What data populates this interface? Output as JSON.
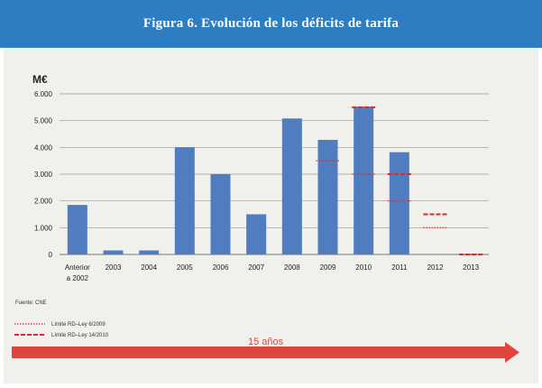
{
  "figure": {
    "title": "Figura 6. Evolución de los déficits de tarifa",
    "source": "Fuente: CNE",
    "arrow_label": "15 años"
  },
  "colors": {
    "banner": "#2e7dc0",
    "panel": "#f0f0ec",
    "bar": "#4f7dbf",
    "limit": "#d92b2b",
    "arrow": "#e0453d"
  },
  "chart_data": {
    "type": "bar",
    "ylabel": "M€",
    "ylim": [
      0,
      6000
    ],
    "yticks": [
      "0",
      "1.000",
      "2.000",
      "3.000",
      "4.000",
      "5.000",
      "6.000"
    ],
    "ytick_values": [
      0,
      1000,
      2000,
      3000,
      4000,
      5000,
      6000
    ],
    "grid": true,
    "categories": [
      [
        "Anterior",
        "a 2002"
      ],
      [
        "2003"
      ],
      [
        "2004"
      ],
      [
        "2005"
      ],
      [
        "2006"
      ],
      [
        "2007"
      ],
      [
        "2008"
      ],
      [
        "2009"
      ],
      [
        "2010"
      ],
      [
        "2011"
      ],
      [
        "2012"
      ],
      [
        "2013"
      ]
    ],
    "values": [
      1850,
      150,
      150,
      4000,
      3000,
      1500,
      5080,
      4280,
      5520,
      3820,
      null,
      null
    ],
    "limits": [
      {
        "name": "Límite RD–Ley 6/2009",
        "style": "dotted",
        "points": [
          {
            "category": 7,
            "value": 3500
          },
          {
            "category": 8,
            "value": 3000
          },
          {
            "category": 9,
            "value": 2000
          },
          {
            "category": 10,
            "value": 1000
          },
          {
            "category": 11,
            "value": 0
          }
        ]
      },
      {
        "name": "Límite RD–Ley 14/2010",
        "style": "dashed",
        "points": [
          {
            "category": 8,
            "value": 5500
          },
          {
            "category": 9,
            "value": 3000
          },
          {
            "category": 10,
            "value": 1500
          },
          {
            "category": 11,
            "value": 0
          }
        ]
      }
    ],
    "legend_position": "bottom-left"
  }
}
